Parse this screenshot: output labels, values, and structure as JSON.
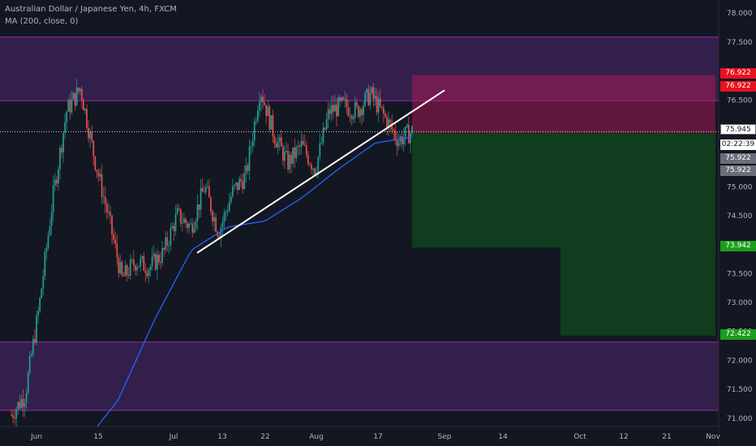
{
  "chart_data": {
    "type": "candlestick",
    "title": "Australian Dollar / Japanese Yen, 4h, FXCM",
    "indicator": "MA (200, close, 0)",
    "symbol": "AUDJPY",
    "timeframe": "4h",
    "ylim": [
      70.85,
      78.15
    ],
    "y_ticks": [
      "78.000",
      "77.500",
      "77.000",
      "76.500",
      "76.000",
      "75.500",
      "75.000",
      "74.500",
      "74.000",
      "73.500",
      "73.000",
      "72.500",
      "72.000",
      "71.500",
      "71.000"
    ],
    "x_ticks": [
      "Jun",
      "15",
      "Jul",
      "13",
      "22",
      "Aug",
      "17",
      "Sep",
      "14",
      "Oct",
      "12",
      "21",
      "Nov"
    ],
    "close_price": "75.945",
    "countdown": "02:22:39",
    "entry_price": "75.922",
    "stop_price": "76.922",
    "target_1": "73.942",
    "target_2": "72.422",
    "zones": [
      {
        "name": "upper-resistance-zone",
        "from": 76.48,
        "to": 77.58,
        "color": "#5b2a7e"
      },
      {
        "name": "lower-support-zone",
        "from": 71.13,
        "to": 72.31,
        "color": "#5b2a7e"
      }
    ],
    "position": {
      "entry": 75.922,
      "stop": 76.922,
      "target_1": 73.942,
      "target_2": 72.422,
      "stop_color": "#6b1d33",
      "target_color": "#0f3d1e"
    },
    "trendline": {
      "from": 73.85,
      "to": 76.66
    },
    "ma_anchors": [
      70.5,
      71.3,
      72.7,
      73.9,
      74.3,
      74.4,
      74.8,
      75.3,
      75.75,
      75.85
    ],
    "candle_anchors": [
      71.05,
      71.4,
      72.9,
      74.8,
      76.3,
      76.7,
      75.5,
      74.5,
      73.4,
      73.7,
      73.6,
      73.85,
      74.5,
      74.3,
      75.0,
      74.2,
      74.9,
      75.2,
      76.7,
      75.9,
      75.4,
      75.7,
      75.3,
      76.3,
      76.4,
      76.3,
      76.6,
      76.2,
      75.8,
      75.95
    ]
  },
  "colors": {
    "background": "#131722",
    "up": "#26a69a",
    "down": "#ef5350",
    "ma": "#2962ff",
    "grid": "#1e222d",
    "axis_text": "#b2b5be"
  }
}
